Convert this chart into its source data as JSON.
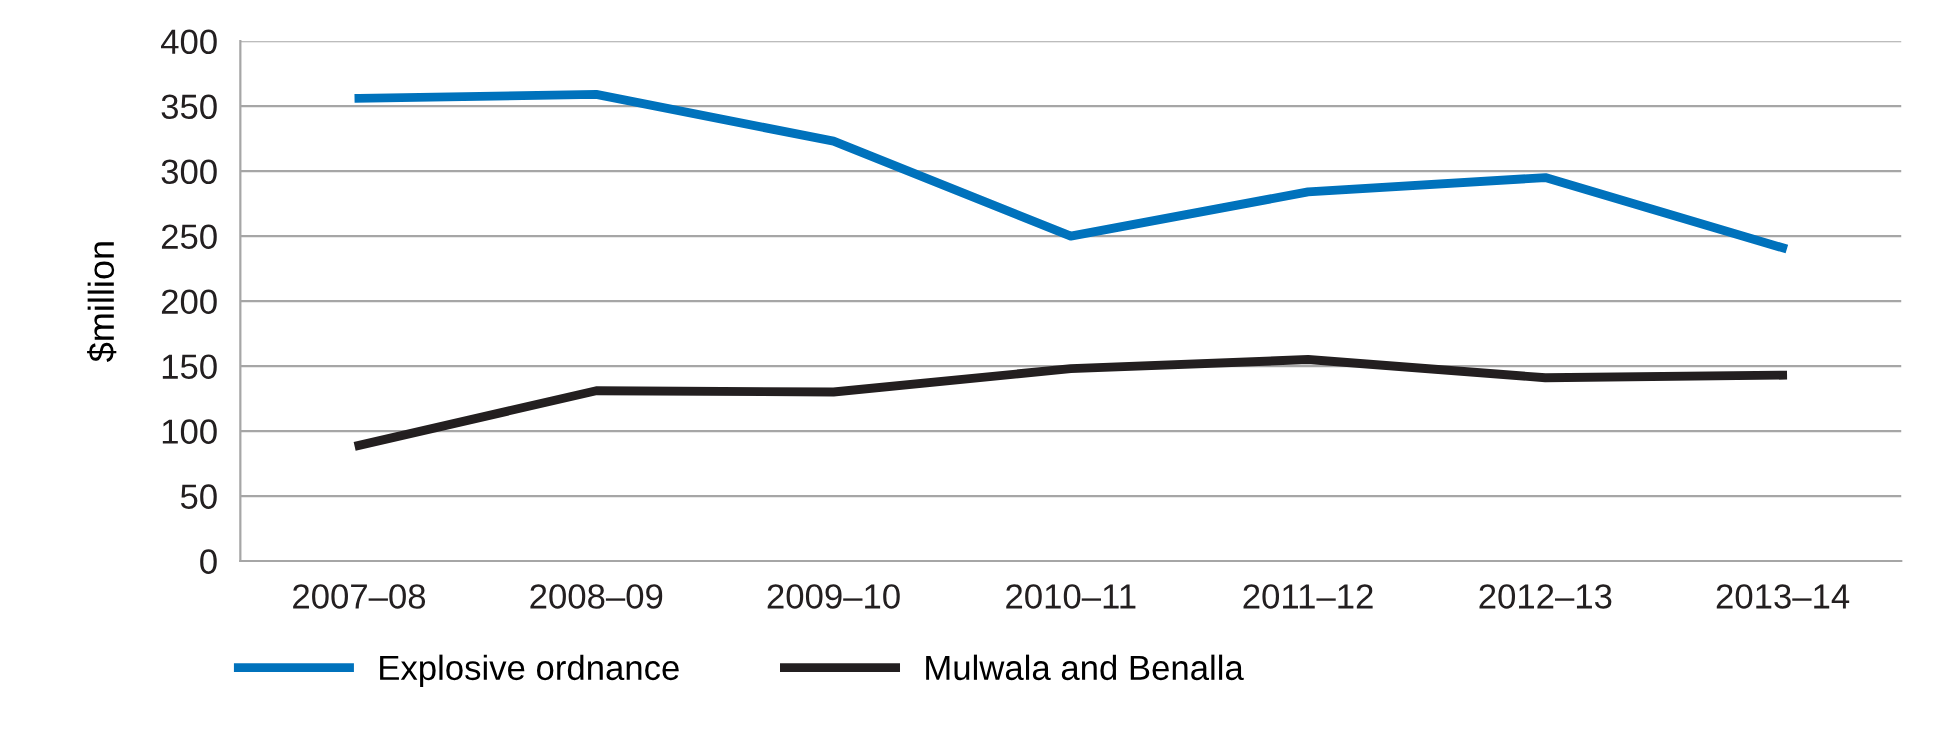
{
  "chart_data": {
    "type": "line",
    "ylabel": "$million",
    "categories": [
      "2007–08",
      "2008–09",
      "2009–10",
      "2010–11",
      "2011–12",
      "2012–13",
      "2013–14"
    ],
    "series": [
      {
        "name": "Explosive ordnance",
        "color": "#0072bc",
        "values": [
          356,
          359,
          323,
          250,
          284,
          295,
          241
        ]
      },
      {
        "name": "Mulwala and Benalla",
        "color": "#231f20",
        "values": [
          89,
          131,
          130,
          148,
          155,
          141,
          143
        ]
      }
    ],
    "ylim": [
      0,
      400
    ],
    "yticks": [
      0,
      50,
      100,
      150,
      200,
      250,
      300,
      350,
      400
    ],
    "grid": "y",
    "legend": "bottom left",
    "marker": "none",
    "line_style": "solid"
  }
}
